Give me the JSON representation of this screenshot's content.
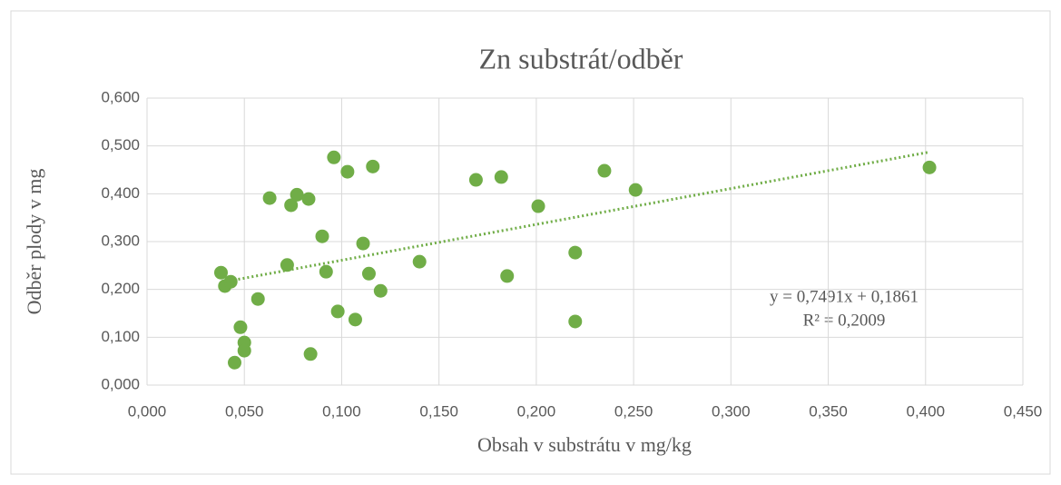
{
  "chart_data": {
    "type": "scatter",
    "title": "Zn substrát/odběr",
    "xlabel": "Obsah v substrátu v mg/kg",
    "ylabel": "Odběr plody v mg",
    "color": "#70ad47",
    "grid": true,
    "x": [
      0.038,
      0.04,
      0.043,
      0.045,
      0.048,
      0.05,
      0.05,
      0.057,
      0.063,
      0.072,
      0.074,
      0.077,
      0.083,
      0.084,
      0.09,
      0.092,
      0.096,
      0.098,
      0.103,
      0.107,
      0.111,
      0.114,
      0.116,
      0.12,
      0.14,
      0.169,
      0.182,
      0.185,
      0.201,
      0.22,
      0.22,
      0.235,
      0.251,
      0.402
    ],
    "values": [
      0.235,
      0.207,
      0.216,
      0.047,
      0.121,
      0.089,
      0.072,
      0.18,
      0.391,
      0.251,
      0.376,
      0.398,
      0.389,
      0.065,
      0.311,
      0.237,
      0.476,
      0.154,
      0.446,
      0.137,
      0.296,
      0.233,
      0.457,
      0.197,
      0.258,
      0.429,
      0.435,
      0.228,
      0.374,
      0.277,
      0.133,
      0.448,
      0.408,
      0.455
    ],
    "trendline": {
      "slope": 0.7491,
      "intercept": 0.1861,
      "x_range": [
        0.04,
        0.402
      ],
      "equation": "y = 0,7491x + 0,1861",
      "r2": "R² = 0,2009"
    },
    "xlim": [
      0,
      0.45
    ],
    "xticks": [
      {
        "value": 0,
        "label": "0,000"
      },
      {
        "value": 0.05,
        "label": "0,050"
      },
      {
        "value": 0.1,
        "label": "0,100"
      },
      {
        "value": 0.15,
        "label": "0,150"
      },
      {
        "value": 0.2,
        "label": "0,200"
      },
      {
        "value": 0.25,
        "label": "0,250"
      },
      {
        "value": 0.3,
        "label": "0,300"
      },
      {
        "value": 0.35,
        "label": "0,350"
      },
      {
        "value": 0.4,
        "label": "0,400"
      },
      {
        "value": 0.45,
        "label": "0,450"
      }
    ],
    "ylim": [
      0,
      0.6
    ],
    "yticks": [
      {
        "value": 0,
        "label": "0,000"
      },
      {
        "value": 0.1,
        "label": "0,100"
      },
      {
        "value": 0.2,
        "label": "0,200"
      },
      {
        "value": 0.3,
        "label": "0,300"
      },
      {
        "value": 0.4,
        "label": "0,400"
      },
      {
        "value": 0.5,
        "label": "0,500"
      },
      {
        "value": 0.6,
        "label": "0,600"
      }
    ]
  }
}
